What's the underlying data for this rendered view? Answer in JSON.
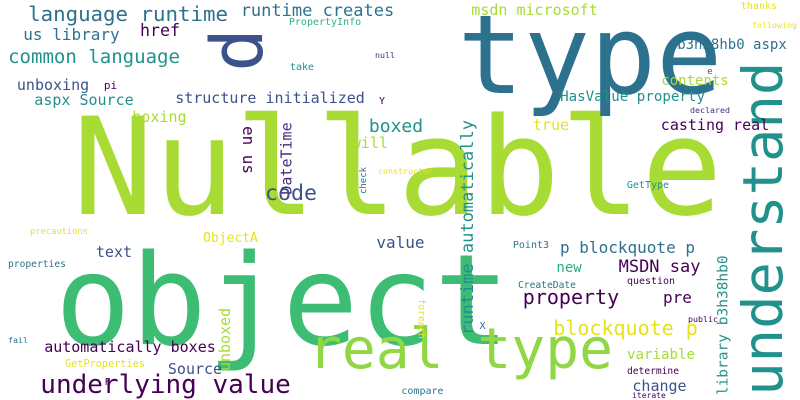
{
  "palette": {
    "background": "#ffffff",
    "purple": "#440154",
    "indigo": "#3b528b",
    "teal": "#2c728e",
    "blue_green": "#21918c",
    "green": "#28ae80",
    "emerald": "#3dbc74",
    "lime": "#a8db34",
    "yellow": "#e5e419"
  },
  "words": [
    {
      "text": "Nullable",
      "color": "#a8db34"
    },
    {
      "text": "object",
      "color": "#3dbc74"
    },
    {
      "text": "type",
      "color": "#2c728e"
    },
    {
      "text": "p",
      "color": "#3b528b"
    },
    {
      "text": "understand",
      "color": "#21918c"
    },
    {
      "text": "real type",
      "color": "#8fd744"
    },
    {
      "text": "underlying value",
      "color": "#440154"
    },
    {
      "text": "language runtime",
      "color": "#2c728e"
    },
    {
      "text": "common language",
      "color": "#21918c"
    },
    {
      "text": "runtime creates",
      "color": "#2c728e"
    },
    {
      "text": "msdn microsoft",
      "color": "#a8db34"
    },
    {
      "text": "b3h38hb0 aspx",
      "color": "#2c728e"
    },
    {
      "text": "us library",
      "color": "#2c728e"
    },
    {
      "text": "href",
      "color": "#440154"
    },
    {
      "text": "unboxing",
      "color": "#3b528b"
    },
    {
      "text": "structure initialized",
      "color": "#3b528b"
    },
    {
      "text": "aspx Source",
      "color": "#21918c"
    },
    {
      "text": "HasValue property",
      "color": "#21918c"
    },
    {
      "text": "contents",
      "color": "#a8db34"
    },
    {
      "text": "boxing",
      "color": "#a8db34"
    },
    {
      "text": "boxed",
      "color": "#21918c"
    },
    {
      "text": "true",
      "color": "#e5e419"
    },
    {
      "text": "casting real",
      "color": "#440154"
    },
    {
      "text": "will",
      "color": "#a8db34"
    },
    {
      "text": "en us",
      "color": "#440154"
    },
    {
      "text": "DateTime",
      "color": "#472d7b"
    },
    {
      "text": "code",
      "color": "#3b528b"
    },
    {
      "text": "runtime automatically",
      "color": "#21918c"
    },
    {
      "text": "p blockquote p",
      "color": "#2c728e"
    },
    {
      "text": "MSDN say",
      "color": "#440154"
    },
    {
      "text": "value",
      "color": "#3b528b"
    },
    {
      "text": "text",
      "color": "#3b528b"
    },
    {
      "text": "property",
      "color": "#440154"
    },
    {
      "text": "new",
      "color": "#28ae80"
    },
    {
      "text": "pre",
      "color": "#440154"
    },
    {
      "text": "library b3h38hb0",
      "color": "#21918c"
    },
    {
      "text": "blockquote p",
      "color": "#e5e419"
    },
    {
      "text": "automatically boxes",
      "color": "#440154"
    },
    {
      "text": "unboxed",
      "color": "#a8db34"
    },
    {
      "text": "variable",
      "color": "#a8db34"
    },
    {
      "text": "Source",
      "color": "#3b528b"
    },
    {
      "text": "change",
      "color": "#3b528b"
    },
    {
      "text": "ObjectA",
      "color": "#e5e419"
    },
    {
      "text": "PropertyInfo",
      "color": "#2db27d"
    },
    {
      "text": "thanks",
      "color": "#e5e419"
    },
    {
      "text": "following",
      "color": "#e5e419"
    },
    {
      "text": "null",
      "color": "#472d7b"
    },
    {
      "text": "take",
      "color": "#21918c"
    },
    {
      "text": "pi",
      "color": "#440154"
    },
    {
      "text": "Y",
      "color": "#440154"
    },
    {
      "text": "declared",
      "color": "#472d7b"
    },
    {
      "text": "e",
      "color": "#3b528b"
    },
    {
      "text": "check",
      "color": "#2c728e"
    },
    {
      "text": "constructor",
      "color": "#e5e419"
    },
    {
      "text": "GetType",
      "color": "#21918c"
    },
    {
      "text": "precautions",
      "color": "#e5e419"
    },
    {
      "text": "Point3",
      "color": "#2c728e"
    },
    {
      "text": "properties",
      "color": "#2c728e"
    },
    {
      "text": "CreateDate",
      "color": "#2c728e"
    },
    {
      "text": "question",
      "color": "#440154"
    },
    {
      "text": "public",
      "color": "#440154"
    },
    {
      "text": "foreach",
      "color": "#e5e419"
    },
    {
      "text": "X",
      "color": "#2c728e"
    },
    {
      "text": "fail",
      "color": "#2c728e"
    },
    {
      "text": "GetProperties",
      "color": "#e5e419"
    },
    {
      "text": "determine",
      "color": "#440154"
    },
    {
      "text": "compare",
      "color": "#2c728e"
    },
    {
      "text": "iterate",
      "color": "#440154"
    },
    {
      "text": "F",
      "color": "#440154"
    }
  ]
}
